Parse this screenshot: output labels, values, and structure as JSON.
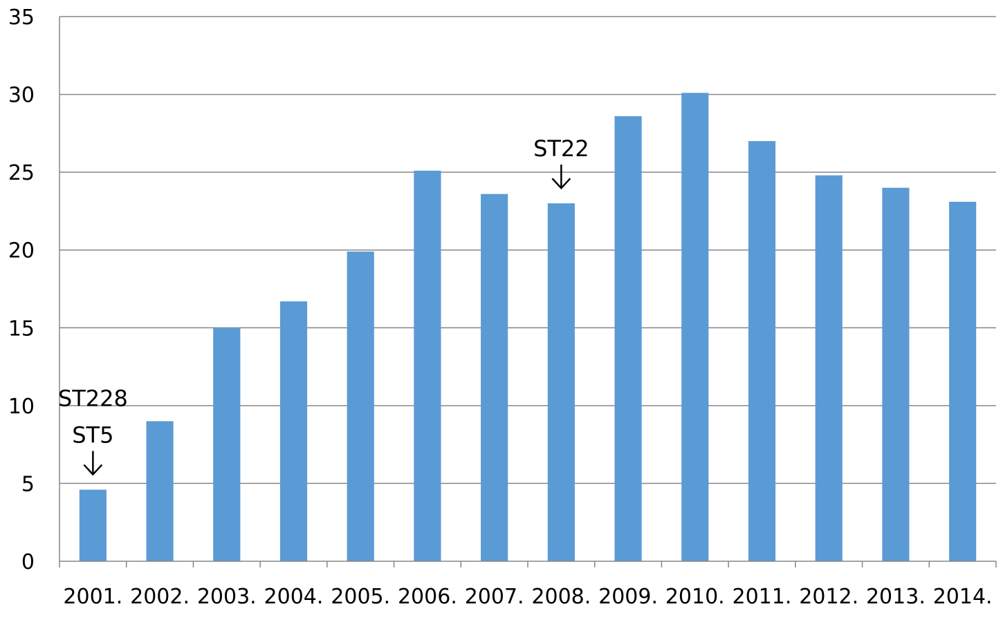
{
  "chart_data": {
    "type": "bar",
    "title": "",
    "xlabel": "",
    "ylabel": "",
    "categories": [
      "2001.",
      "2002.",
      "2003.",
      "2004.",
      "2005.",
      "2006.",
      "2007.",
      "2008.",
      "2009.",
      "2010.",
      "2011.",
      "2012.",
      "2013.",
      "2014."
    ],
    "values": [
      4.6,
      9.0,
      15.0,
      16.7,
      19.9,
      25.1,
      23.6,
      23.0,
      28.6,
      30.1,
      27.0,
      24.8,
      24.0,
      23.1
    ],
    "ylim": [
      0,
      35
    ],
    "yticks": [
      0,
      5,
      10,
      15,
      20,
      25,
      30,
      35
    ],
    "grid": true,
    "legend": "none",
    "bar_color": "#5B9BD5",
    "gridline_color": "#868686",
    "annotations": [
      {
        "category": "2001.",
        "lines": [
          "ST228",
          "ST5"
        ],
        "arrow": "down-arrow-icon"
      },
      {
        "category": "2008.",
        "lines": [
          "ST22"
        ],
        "arrow": "down-arrow-icon"
      }
    ]
  }
}
